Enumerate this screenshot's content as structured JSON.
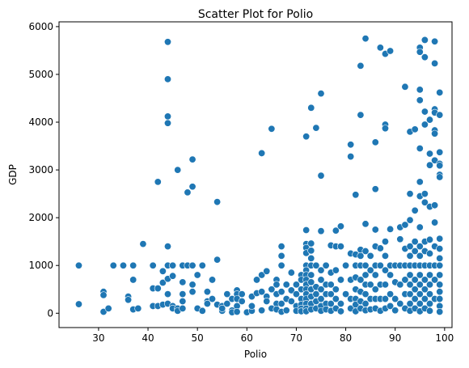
{
  "chart_data": {
    "type": "scatter",
    "title": "Scatter Plot for Polio",
    "xlabel": "Polio",
    "ylabel": "GDP",
    "xlim": [
      22,
      101.5
    ],
    "ylim": [
      -300,
      6100
    ],
    "xticks": [
      30,
      40,
      50,
      60,
      70,
      80,
      90,
      100
    ],
    "yticks": [
      0,
      1000,
      2000,
      3000,
      4000,
      5000,
      6000
    ],
    "grid": false,
    "legend": "none",
    "point_color": "#1f77b4",
    "points": [
      [
        26,
        1000
      ],
      [
        26,
        190
      ],
      [
        31,
        450
      ],
      [
        31,
        380
      ],
      [
        31,
        30
      ],
      [
        32,
        100
      ],
      [
        33,
        1000
      ],
      [
        35,
        1000
      ],
      [
        36,
        350
      ],
      [
        36,
        280
      ],
      [
        37,
        1000
      ],
      [
        37,
        700
      ],
      [
        37,
        80
      ],
      [
        38,
        100
      ],
      [
        39,
        1450
      ],
      [
        41,
        1000
      ],
      [
        41,
        520
      ],
      [
        41,
        150
      ],
      [
        42,
        520
      ],
      [
        42,
        2750
      ],
      [
        42,
        150
      ],
      [
        43,
        640
      ],
      [
        43,
        880
      ],
      [
        43,
        180
      ],
      [
        44,
        5680
      ],
      [
        44,
        4900
      ],
      [
        44,
        4120
      ],
      [
        44,
        3980
      ],
      [
        44,
        1400
      ],
      [
        44,
        1000
      ],
      [
        44,
        720
      ],
      [
        44,
        400
      ],
      [
        44,
        200
      ],
      [
        45,
        1000
      ],
      [
        45,
        780
      ],
      [
        45,
        150
      ],
      [
        45,
        100
      ],
      [
        46,
        3000
      ],
      [
        46,
        100
      ],
      [
        46,
        50
      ],
      [
        47,
        1000
      ],
      [
        47,
        650
      ],
      [
        47,
        400
      ],
      [
        47,
        250
      ],
      [
        47,
        100
      ],
      [
        48,
        2530
      ],
      [
        48,
        1000
      ],
      [
        49,
        2650
      ],
      [
        49,
        3220
      ],
      [
        49,
        1000
      ],
      [
        49,
        600
      ],
      [
        49,
        450
      ],
      [
        50,
        100
      ],
      [
        50,
        800
      ],
      [
        51,
        1000
      ],
      [
        51,
        50
      ],
      [
        52,
        450
      ],
      [
        52,
        250
      ],
      [
        52,
        200
      ],
      [
        53,
        700
      ],
      [
        53,
        300
      ],
      [
        54,
        2330
      ],
      [
        54,
        1120
      ],
      [
        54,
        180
      ],
      [
        55,
        50
      ],
      [
        55,
        150
      ],
      [
        55,
        100
      ],
      [
        56,
        400
      ],
      [
        56,
        200
      ],
      [
        57,
        300
      ],
      [
        57,
        60
      ],
      [
        57,
        20
      ],
      [
        58,
        480
      ],
      [
        58,
        400
      ],
      [
        58,
        300
      ],
      [
        58,
        150
      ],
      [
        58,
        30
      ],
      [
        59,
        250
      ],
      [
        59,
        400
      ],
      [
        60,
        20
      ],
      [
        61,
        50
      ],
      [
        61,
        350
      ],
      [
        61,
        150
      ],
      [
        62,
        420
      ],
      [
        62,
        700
      ],
      [
        63,
        3350
      ],
      [
        63,
        800
      ],
      [
        63,
        450
      ],
      [
        63,
        60
      ],
      [
        64,
        880
      ],
      [
        64,
        350
      ],
      [
        64,
        250
      ],
      [
        65,
        3860
      ],
      [
        65,
        100
      ],
      [
        65,
        500
      ],
      [
        66,
        700
      ],
      [
        66,
        600
      ],
      [
        66,
        400
      ],
      [
        66,
        200
      ],
      [
        66,
        80
      ],
      [
        67,
        1000
      ],
      [
        67,
        1400
      ],
      [
        67,
        1200
      ],
      [
        67,
        450
      ],
      [
        67,
        200
      ],
      [
        67,
        30
      ],
      [
        68,
        600
      ],
      [
        68,
        300
      ],
      [
        68,
        60
      ],
      [
        69,
        480
      ],
      [
        69,
        850
      ],
      [
        69,
        250
      ],
      [
        70,
        150
      ],
      [
        70,
        600
      ],
      [
        70,
        400
      ],
      [
        70,
        50
      ],
      [
        71,
        800
      ],
      [
        71,
        700
      ],
      [
        71,
        500
      ],
      [
        71,
        300
      ],
      [
        71,
        180
      ],
      [
        71,
        100
      ],
      [
        71,
        40
      ],
      [
        72,
        1740
      ],
      [
        72,
        1450
      ],
      [
        72,
        1370
      ],
      [
        72,
        1260
      ],
      [
        72,
        1000
      ],
      [
        72,
        900
      ],
      [
        72,
        800
      ],
      [
        72,
        700
      ],
      [
        72,
        600
      ],
      [
        72,
        500
      ],
      [
        72,
        400
      ],
      [
        72,
        300
      ],
      [
        72,
        200
      ],
      [
        72,
        100
      ],
      [
        72,
        40
      ],
      [
        72,
        3700
      ],
      [
        73,
        4300
      ],
      [
        73,
        1460
      ],
      [
        73,
        1310
      ],
      [
        73,
        1150
      ],
      [
        73,
        1000
      ],
      [
        73,
        800
      ],
      [
        73,
        650
      ],
      [
        73,
        500
      ],
      [
        73,
        350
      ],
      [
        73,
        200
      ],
      [
        73,
        80
      ],
      [
        74,
        3880
      ],
      [
        74,
        1000
      ],
      [
        74,
        550
      ],
      [
        74,
        400
      ],
      [
        74,
        250
      ],
      [
        74,
        100
      ],
      [
        75,
        4600
      ],
      [
        75,
        2880
      ],
      [
        75,
        1720
      ],
      [
        75,
        900
      ],
      [
        75,
        700
      ],
      [
        75,
        500
      ],
      [
        75,
        300
      ],
      [
        75,
        150
      ],
      [
        75,
        50
      ],
      [
        76,
        1000
      ],
      [
        76,
        600
      ],
      [
        76,
        400
      ],
      [
        76,
        200
      ],
      [
        76,
        80
      ],
      [
        77,
        1420
      ],
      [
        77,
        850
      ],
      [
        77,
        600
      ],
      [
        77,
        400
      ],
      [
        77,
        200
      ],
      [
        77,
        50
      ],
      [
        78,
        1730
      ],
      [
        78,
        1400
      ],
      [
        78,
        900
      ],
      [
        78,
        500
      ],
      [
        78,
        300
      ],
      [
        78,
        100
      ],
      [
        79,
        1820
      ],
      [
        79,
        1400
      ],
      [
        79,
        700
      ],
      [
        79,
        200
      ],
      [
        79,
        40
      ],
      [
        80,
        1000
      ],
      [
        80,
        400
      ],
      [
        81,
        3530
      ],
      [
        81,
        3280
      ],
      [
        81,
        1250
      ],
      [
        81,
        700
      ],
      [
        81,
        300
      ],
      [
        81,
        100
      ],
      [
        82,
        2480
      ],
      [
        82,
        1230
      ],
      [
        82,
        1000
      ],
      [
        82,
        750
      ],
      [
        82,
        500
      ],
      [
        82,
        300
      ],
      [
        82,
        180
      ],
      [
        82,
        40
      ],
      [
        83,
        5180
      ],
      [
        83,
        4150
      ],
      [
        83,
        1330
      ],
      [
        83,
        1200
      ],
      [
        83,
        1000
      ],
      [
        83,
        700
      ],
      [
        83,
        450
      ],
      [
        83,
        250
      ],
      [
        83,
        100
      ],
      [
        84,
        5750
      ],
      [
        84,
        1870
      ],
      [
        84,
        1300
      ],
      [
        84,
        1000
      ],
      [
        84,
        800
      ],
      [
        84,
        600
      ],
      [
        84,
        400
      ],
      [
        84,
        200
      ],
      [
        84,
        60
      ],
      [
        85,
        1200
      ],
      [
        85,
        900
      ],
      [
        85,
        600
      ],
      [
        85,
        300
      ],
      [
        85,
        80
      ],
      [
        86,
        3580
      ],
      [
        86,
        2600
      ],
      [
        86,
        1750
      ],
      [
        86,
        1400
      ],
      [
        86,
        1000
      ],
      [
        86,
        800
      ],
      [
        86,
        500
      ],
      [
        86,
        300
      ],
      [
        86,
        100
      ],
      [
        87,
        5560
      ],
      [
        87,
        1360
      ],
      [
        87,
        1000
      ],
      [
        87,
        600
      ],
      [
        87,
        300
      ],
      [
        87,
        50
      ],
      [
        88,
        5430
      ],
      [
        88,
        3950
      ],
      [
        88,
        3870
      ],
      [
        88,
        1500
      ],
      [
        88,
        1200
      ],
      [
        88,
        900
      ],
      [
        88,
        600
      ],
      [
        88,
        300
      ],
      [
        88,
        100
      ],
      [
        89,
        5490
      ],
      [
        89,
        1760
      ],
      [
        89,
        1000
      ],
      [
        89,
        800
      ],
      [
        89,
        400
      ],
      [
        89,
        150
      ],
      [
        90,
        1000
      ],
      [
        90,
        650
      ],
      [
        90,
        300
      ],
      [
        90,
        60
      ],
      [
        91,
        1800
      ],
      [
        91,
        1550
      ],
      [
        91,
        1000
      ],
      [
        91,
        600
      ],
      [
        91,
        200
      ],
      [
        92,
        4740
      ],
      [
        92,
        1850
      ],
      [
        92,
        1350
      ],
      [
        92,
        1000
      ],
      [
        92,
        700
      ],
      [
        92,
        400
      ],
      [
        92,
        100
      ],
      [
        93,
        3800
      ],
      [
        93,
        2500
      ],
      [
        93,
        1950
      ],
      [
        93,
        1400
      ],
      [
        93,
        1200
      ],
      [
        93,
        1000
      ],
      [
        93,
        800
      ],
      [
        93,
        600
      ],
      [
        93,
        400
      ],
      [
        93,
        200
      ],
      [
        93,
        50
      ],
      [
        94,
        3850
      ],
      [
        94,
        2150
      ],
      [
        94,
        1500
      ],
      [
        94,
        1300
      ],
      [
        94,
        1000
      ],
      [
        94,
        700
      ],
      [
        94,
        500
      ],
      [
        94,
        300
      ],
      [
        94,
        100
      ],
      [
        95,
        5560
      ],
      [
        95,
        5470
      ],
      [
        95,
        4680
      ],
      [
        95,
        4460
      ],
      [
        95,
        3450
      ],
      [
        95,
        2750
      ],
      [
        95,
        2450
      ],
      [
        95,
        1800
      ],
      [
        95,
        1400
      ],
      [
        95,
        1200
      ],
      [
        95,
        1000
      ],
      [
        95,
        800
      ],
      [
        95,
        600
      ],
      [
        95,
        400
      ],
      [
        95,
        200
      ],
      [
        95,
        40
      ],
      [
        96,
        5720
      ],
      [
        96,
        5360
      ],
      [
        96,
        4220
      ],
      [
        96,
        3950
      ],
      [
        96,
        2500
      ],
      [
        96,
        2320
      ],
      [
        96,
        1500
      ],
      [
        96,
        1300
      ],
      [
        96,
        1000
      ],
      [
        96,
        700
      ],
      [
        96,
        500
      ],
      [
        96,
        300
      ],
      [
        96,
        100
      ],
      [
        97,
        4050
      ],
      [
        97,
        3340
      ],
      [
        97,
        3100
      ],
      [
        97,
        2230
      ],
      [
        97,
        1540
      ],
      [
        97,
        1250
      ],
      [
        97,
        1000
      ],
      [
        97,
        800
      ],
      [
        97,
        600
      ],
      [
        97,
        400
      ],
      [
        97,
        200
      ],
      [
        97,
        50
      ],
      [
        98,
        5690
      ],
      [
        98,
        5230
      ],
      [
        98,
        4270
      ],
      [
        98,
        4200
      ],
      [
        98,
        3830
      ],
      [
        98,
        3760
      ],
      [
        98,
        3200
      ],
      [
        98,
        2260
      ],
      [
        98,
        1900
      ],
      [
        98,
        1400
      ],
      [
        98,
        1000
      ],
      [
        98,
        700
      ],
      [
        98,
        300
      ],
      [
        99,
        4620
      ],
      [
        99,
        4150
      ],
      [
        99,
        3370
      ],
      [
        99,
        3130
      ],
      [
        99,
        3090
      ],
      [
        99,
        2900
      ],
      [
        99,
        2850
      ],
      [
        99,
        1560
      ],
      [
        99,
        1350
      ],
      [
        99,
        1150
      ],
      [
        99,
        1000
      ],
      [
        99,
        800
      ],
      [
        99,
        600
      ],
      [
        99,
        450
      ],
      [
        99,
        300
      ],
      [
        99,
        150
      ],
      [
        99,
        30
      ]
    ]
  }
}
